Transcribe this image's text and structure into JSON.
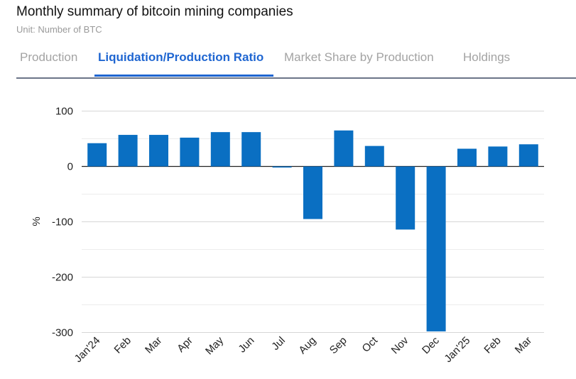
{
  "header": {
    "title": "Monthly summary of bitcoin mining companies",
    "subtitle": "Unit: Number of BTC"
  },
  "tabs": [
    {
      "label": "Production",
      "active": false
    },
    {
      "label": "Liquidation/Production Ratio",
      "active": true
    },
    {
      "label": "Market Share by Production",
      "active": false
    },
    {
      "label": "Holdings",
      "active": false
    }
  ],
  "colors": {
    "bar": "#0a6fc2",
    "accent": "#1f66d1",
    "grid": "#dddddd"
  },
  "chart_data": {
    "type": "bar",
    "title": "",
    "xlabel": "",
    "ylabel": "%",
    "ylim": [
      -300,
      100
    ],
    "yticks": [
      100,
      0,
      -100,
      -200,
      -300
    ],
    "grid": true,
    "categories": [
      "Jan'24",
      "Feb",
      "Mar",
      "Apr",
      "May",
      "Jun",
      "Jul",
      "Aug",
      "Sep",
      "Oct",
      "Nov",
      "Dec",
      "Jan'25",
      "Feb",
      "Mar"
    ],
    "values": [
      42,
      57,
      57,
      52,
      62,
      62,
      -2,
      -95,
      65,
      37,
      -114,
      -298,
      32,
      36,
      40
    ]
  }
}
